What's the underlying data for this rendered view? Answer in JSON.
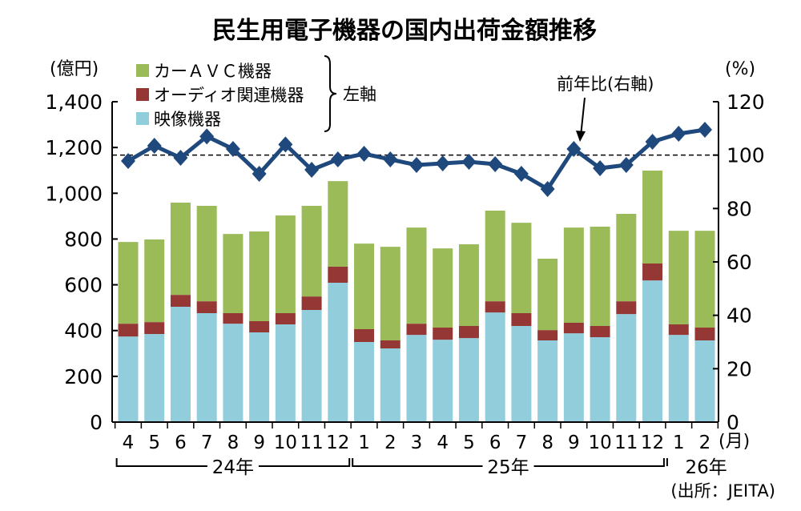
{
  "chart_data": {
    "type": "bar",
    "stacked": true,
    "title": "民生用電子機器の国内出荷金額推移",
    "left_axis": {
      "unit_label": "(億円)",
      "ylim": [
        0,
        1400
      ],
      "ticks": [
        0,
        200,
        400,
        600,
        800,
        1000,
        1200,
        1400
      ],
      "tick_labels": [
        "0",
        "200",
        "400",
        "600",
        "800",
        "1,000",
        "1,200",
        "1,400"
      ]
    },
    "right_axis": {
      "unit_label": "(%)",
      "ylim": [
        0,
        120
      ],
      "ticks": [
        0,
        20,
        40,
        60,
        80,
        100,
        120
      ],
      "tick_labels": [
        "0",
        "20",
        "40",
        "60",
        "80",
        "100",
        "120"
      ]
    },
    "categories": [
      "4",
      "5",
      "6",
      "7",
      "8",
      "9",
      "10",
      "11",
      "12",
      "1",
      "2",
      "3",
      "4",
      "5",
      "6",
      "7",
      "8",
      "9",
      "10",
      "11",
      "12",
      "1",
      "2"
    ],
    "x_unit_label": "(月)",
    "year_groups": [
      {
        "label": "24年",
        "from": 0,
        "to": 8
      },
      {
        "label": "25年",
        "from": 9,
        "to": 20
      },
      {
        "label": "26年",
        "from": 21,
        "to": 22
      }
    ],
    "series": [
      {
        "name": "映像機器",
        "color": "#92CDDC",
        "axis": "left",
        "values": [
          374,
          385,
          504,
          476,
          430,
          392,
          427,
          490,
          609,
          350,
          322,
          381,
          360,
          367,
          479,
          420,
          357,
          388,
          371,
          472,
          619,
          381,
          357
        ]
      },
      {
        "name": "オーディオ関連機器",
        "color": "#953735",
        "axis": "left",
        "values": [
          56,
          52,
          52,
          52,
          46,
          49,
          49,
          59,
          70,
          56,
          35,
          49,
          53,
          53,
          49,
          56,
          45,
          46,
          49,
          56,
          74,
          46,
          56
        ]
      },
      {
        "name": "カーＡＶＣ機器",
        "color": "#9BBB59",
        "axis": "left",
        "values": [
          357,
          361,
          403,
          417,
          346,
          392,
          427,
          396,
          374,
          374,
          409,
          420,
          346,
          357,
          396,
          395,
          312,
          416,
          434,
          382,
          406,
          409,
          423
        ]
      },
      {
        "name": "前年比(右軸)",
        "type": "line",
        "color": "#1F497D",
        "axis": "right",
        "values": [
          97.8,
          103.5,
          99,
          107,
          102.3,
          93,
          104,
          94.5,
          98.4,
          100.5,
          98.4,
          96.3,
          96.9,
          97.5,
          96.6,
          93,
          87.3,
          102.3,
          95.1,
          96.3,
          105,
          108,
          109.5
        ]
      }
    ],
    "reference_line": {
      "axis": "right",
      "value": 100,
      "style": "dashed"
    },
    "legend": {
      "position": "top-left",
      "entries": [
        "カーＡＶＣ機器",
        "オーディオ関連機器",
        "映像機器"
      ],
      "bracket_label": "左軸"
    },
    "annotation": "前年比(右軸)",
    "source": "(出所：JEITA)"
  }
}
